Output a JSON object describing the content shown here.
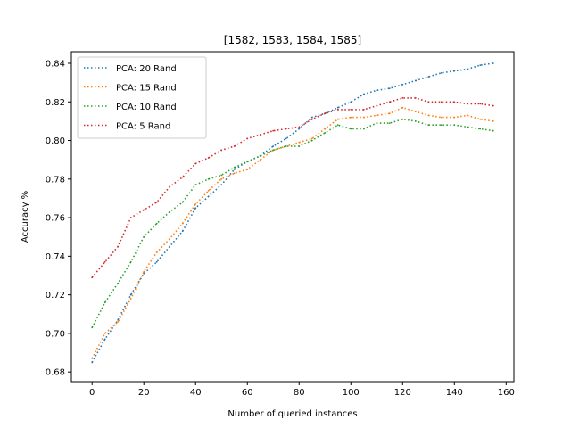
{
  "chart_data": {
    "type": "line",
    "title": "[1582, 1583, 1584, 1585]",
    "xlabel": "Number of queried instances",
    "ylabel": "Accuracy %",
    "xlim": [
      -8,
      163
    ],
    "ylim": [
      0.675,
      0.846
    ],
    "xticks": [
      0,
      20,
      40,
      60,
      80,
      100,
      120,
      140,
      160
    ],
    "xtick_labels": [
      "0",
      "20",
      "40",
      "60",
      "80",
      "100",
      "120",
      "140",
      "160"
    ],
    "yticks": [
      0.68,
      0.7,
      0.72,
      0.74,
      0.76,
      0.78,
      0.8,
      0.82,
      0.84
    ],
    "ytick_labels": [
      "0.68",
      "0.70",
      "0.72",
      "0.74",
      "0.76",
      "0.78",
      "0.80",
      "0.82",
      "0.84"
    ],
    "grid": false,
    "legend_position": "upper-left",
    "line_style": "dotted",
    "x": [
      0,
      5,
      10,
      15,
      20,
      25,
      30,
      35,
      40,
      45,
      50,
      55,
      60,
      65,
      70,
      75,
      80,
      85,
      90,
      95,
      100,
      105,
      110,
      115,
      120,
      125,
      130,
      135,
      140,
      145,
      150,
      155
    ],
    "series": [
      {
        "name": "PCA: 20 Rand",
        "color": "#1f77b4",
        "values": [
          0.685,
          0.697,
          0.707,
          0.72,
          0.731,
          0.737,
          0.745,
          0.753,
          0.765,
          0.771,
          0.777,
          0.785,
          0.789,
          0.792,
          0.797,
          0.801,
          0.806,
          0.812,
          0.814,
          0.817,
          0.82,
          0.824,
          0.826,
          0.827,
          0.829,
          0.831,
          0.833,
          0.835,
          0.836,
          0.837,
          0.839,
          0.84
        ]
      },
      {
        "name": "PCA: 15 Rand",
        "color": "#ff7f0e",
        "values": [
          0.687,
          0.7,
          0.706,
          0.718,
          0.732,
          0.742,
          0.749,
          0.757,
          0.767,
          0.774,
          0.78,
          0.783,
          0.785,
          0.79,
          0.795,
          0.797,
          0.799,
          0.801,
          0.806,
          0.811,
          0.812,
          0.812,
          0.813,
          0.814,
          0.817,
          0.815,
          0.813,
          0.812,
          0.812,
          0.813,
          0.811,
          0.81
        ]
      },
      {
        "name": "PCA: 10 Rand",
        "color": "#2ca02c",
        "values": [
          0.703,
          0.716,
          0.726,
          0.737,
          0.75,
          0.757,
          0.763,
          0.768,
          0.777,
          0.78,
          0.782,
          0.786,
          0.789,
          0.792,
          0.795,
          0.797,
          0.797,
          0.8,
          0.804,
          0.808,
          0.806,
          0.806,
          0.809,
          0.809,
          0.811,
          0.81,
          0.808,
          0.808,
          0.808,
          0.807,
          0.806,
          0.805
        ]
      },
      {
        "name": "PCA: 5 Rand",
        "color": "#d62728",
        "values": [
          0.729,
          0.737,
          0.745,
          0.76,
          0.764,
          0.768,
          0.776,
          0.781,
          0.788,
          0.791,
          0.795,
          0.797,
          0.801,
          0.803,
          0.805,
          0.806,
          0.807,
          0.811,
          0.814,
          0.816,
          0.816,
          0.816,
          0.818,
          0.82,
          0.822,
          0.822,
          0.82,
          0.82,
          0.82,
          0.819,
          0.819,
          0.818
        ]
      }
    ]
  }
}
